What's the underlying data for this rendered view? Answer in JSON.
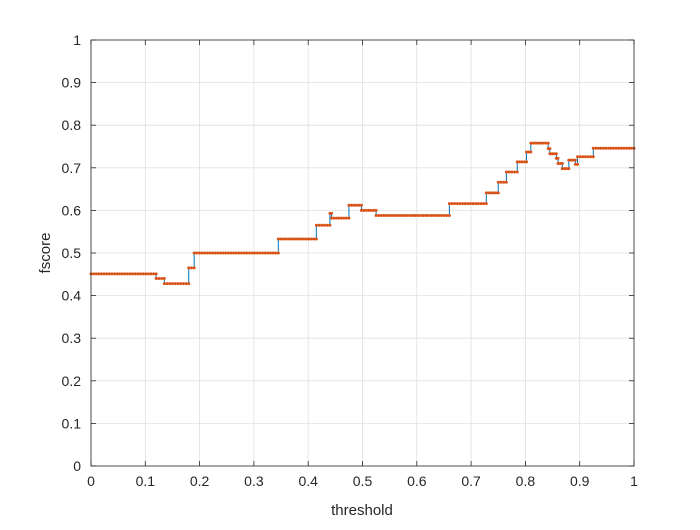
{
  "chart_data": {
    "type": "line",
    "title": "",
    "xlabel": "threshold",
    "ylabel": "fscore",
    "xlim": [
      0,
      1
    ],
    "ylim": [
      0,
      1
    ],
    "grid": true,
    "xticks": [
      0,
      0.1,
      0.2,
      0.3,
      0.4,
      0.5,
      0.6,
      0.7,
      0.8,
      0.9,
      1
    ],
    "xtick_labels": [
      "0",
      "0.1",
      "0.2",
      "0.3",
      "0.4",
      "0.5",
      "0.6",
      "0.7",
      "0.8",
      "0.9",
      "1"
    ],
    "yticks": [
      0,
      0.1,
      0.2,
      0.3,
      0.4,
      0.5,
      0.6,
      0.7,
      0.8,
      0.9,
      1
    ],
    "ytick_labels": [
      "0",
      "0.1",
      "0.2",
      "0.3",
      "0.4",
      "0.5",
      "0.6",
      "0.7",
      "0.8",
      "0.9",
      "1"
    ],
    "colors": {
      "line": "#0072BD",
      "markers": "#D95319",
      "grid": "#E0E0E0",
      "axes": "#262626"
    },
    "series": [
      {
        "style": "step",
        "points": [
          [
            0.0,
            0.451
          ],
          [
            0.12,
            0.451
          ],
          [
            0.12,
            0.44
          ],
          [
            0.135,
            0.44
          ],
          [
            0.135,
            0.428
          ],
          [
            0.18,
            0.428
          ],
          [
            0.18,
            0.465
          ],
          [
            0.19,
            0.465
          ],
          [
            0.19,
            0.5
          ],
          [
            0.345,
            0.5
          ],
          [
            0.345,
            0.533
          ],
          [
            0.415,
            0.533
          ],
          [
            0.415,
            0.565
          ],
          [
            0.44,
            0.565
          ],
          [
            0.44,
            0.593
          ],
          [
            0.443,
            0.593
          ],
          [
            0.443,
            0.582
          ],
          [
            0.475,
            0.582
          ],
          [
            0.475,
            0.612
          ],
          [
            0.498,
            0.612
          ],
          [
            0.498,
            0.6
          ],
          [
            0.525,
            0.6
          ],
          [
            0.525,
            0.588
          ],
          [
            0.66,
            0.588
          ],
          [
            0.66,
            0.616
          ],
          [
            0.728,
            0.616
          ],
          [
            0.728,
            0.641
          ],
          [
            0.75,
            0.641
          ],
          [
            0.75,
            0.666
          ],
          [
            0.765,
            0.666
          ],
          [
            0.765,
            0.69
          ],
          [
            0.785,
            0.69
          ],
          [
            0.785,
            0.714
          ],
          [
            0.802,
            0.714
          ],
          [
            0.802,
            0.737
          ],
          [
            0.81,
            0.737
          ],
          [
            0.81,
            0.758
          ],
          [
            0.842,
            0.758
          ],
          [
            0.842,
            0.745
          ],
          [
            0.845,
            0.745
          ],
          [
            0.845,
            0.733
          ],
          [
            0.857,
            0.733
          ],
          [
            0.857,
            0.722
          ],
          [
            0.86,
            0.722
          ],
          [
            0.86,
            0.71
          ],
          [
            0.868,
            0.71
          ],
          [
            0.868,
            0.698
          ],
          [
            0.88,
            0.698
          ],
          [
            0.88,
            0.718
          ],
          [
            0.892,
            0.718
          ],
          [
            0.892,
            0.708
          ],
          [
            0.896,
            0.708
          ],
          [
            0.896,
            0.726
          ],
          [
            0.925,
            0.726
          ],
          [
            0.925,
            0.746
          ],
          [
            1.0,
            0.746
          ]
        ]
      }
    ]
  }
}
